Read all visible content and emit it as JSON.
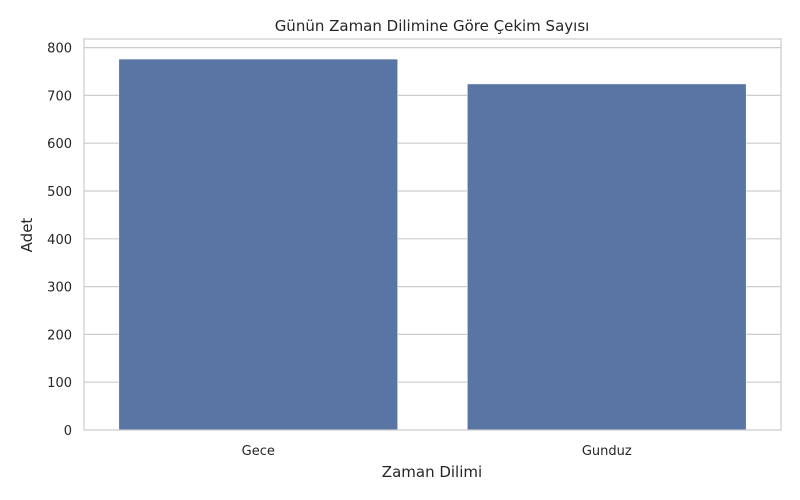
{
  "chart_data": {
    "type": "bar",
    "title": "Günün Zaman Dilimine Göre Çekim Sayısı",
    "xlabel": "Zaman Dilimi",
    "ylabel": "Adet",
    "categories": [
      "Gece",
      "Gunduz"
    ],
    "values": [
      776,
      724
    ],
    "ylim": [
      0,
      818
    ],
    "yticks": [
      0,
      100,
      200,
      300,
      400,
      500,
      600,
      700,
      800
    ],
    "grid": true,
    "bar_color": "#5875a4",
    "grid_color": "#cccccc"
  }
}
